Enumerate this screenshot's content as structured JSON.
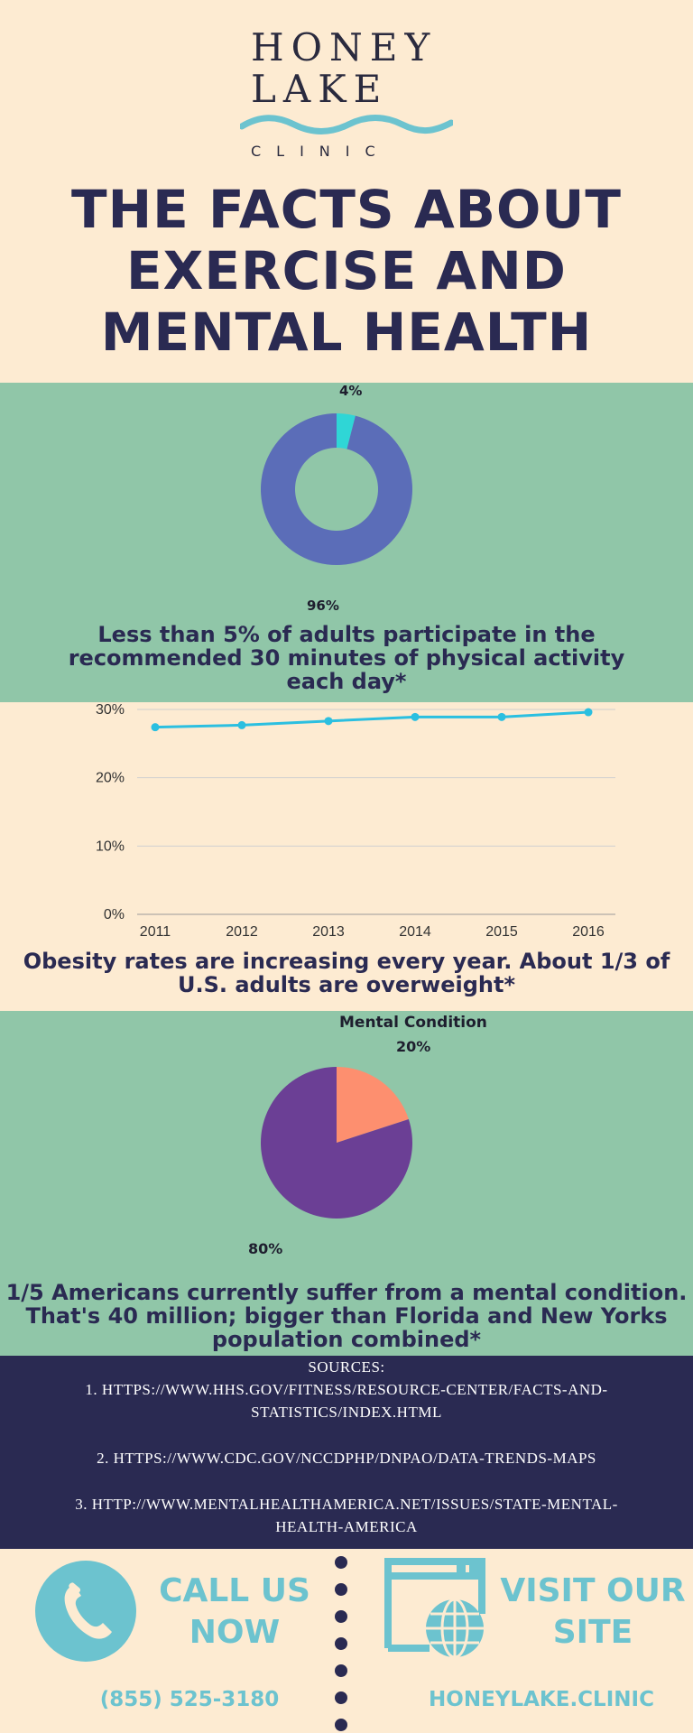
{
  "brand": {
    "line1": "HONEY",
    "line2": "LAKE",
    "line3": "CLINIC"
  },
  "headline": {
    "line1": "THE FACTS ABOUT",
    "line2": "EXERCISE AND",
    "line3": "MENTAL HEALTH"
  },
  "colors": {
    "cream": "#fdebd2",
    "green": "#90c6a8",
    "navy": "#2a2a52",
    "teal": "#6cc3cf",
    "donut_main": "#5b6db8",
    "donut_accent": "#2fd6d6",
    "pie_main": "#6b3f95",
    "pie_accent": "#fd8f6f",
    "line": "#2bbfe0"
  },
  "stat1": {
    "caption_line1": "Less than 5% of adults participate in the",
    "caption_line2": "recommended 30 minutes of physical activity",
    "caption_line3": "each day*"
  },
  "stat2": {
    "caption_line1": "Obesity rates are increasing every year. About 1/3 of",
    "caption_line2": "U.S. adults are overweight*"
  },
  "stat3": {
    "caption_line1": "1/5 Americans currently suffer from a mental condition.",
    "caption_line2": "That's 40 million; bigger than Florida and New Yorks",
    "caption_line3": "population combined*"
  },
  "chart_data": [
    {
      "type": "pie",
      "style": "donut",
      "slices": [
        {
          "label": "4%",
          "value": 4
        },
        {
          "label": "96%",
          "value": 96
        }
      ]
    },
    {
      "type": "line",
      "categories": [
        "2011",
        "2012",
        "2013",
        "2014",
        "2015",
        "2016"
      ],
      "values": [
        27.4,
        27.7,
        28.3,
        28.9,
        28.9,
        29.6
      ],
      "ylim": [
        0,
        30
      ],
      "yticks": [
        "0%",
        "10%",
        "20%",
        "30%"
      ],
      "ytick_values": [
        0,
        10,
        20,
        30
      ],
      "grid": true
    },
    {
      "type": "pie",
      "title": "Mental Condition",
      "slices": [
        {
          "label": "20%",
          "value": 20
        },
        {
          "label": "80%",
          "value": 80
        }
      ]
    }
  ],
  "sources": {
    "heading": "SOURCES:",
    "item1_line1": "1. HTTPS://WWW.HHS.GOV/FITNESS/RESOURCE-CENTER/FACTS-AND-",
    "item1_line2": "STATISTICS/INDEX.HTML",
    "item2_line1": "2. HTTPS://WWW.CDC.GOV/NCCDPHP/DNPAO/DATA-TRENDS-MAPS",
    "item3_line1": "3. HTTP://WWW.MENTALHEALTHAMERICA.NET/ISSUES/STATE-MENTAL-",
    "item3_line2": "HEALTH-AMERICA"
  },
  "cta": {
    "call_line1": "CALL US",
    "call_line2": "NOW",
    "phone": "(855) 525-3180",
    "visit_line1": "VISIT OUR",
    "visit_line2": "SITE",
    "website": "HONEYLAKE.CLINIC",
    "phone_icon": "phone-icon",
    "web_icon": "globe-browser-icon"
  }
}
